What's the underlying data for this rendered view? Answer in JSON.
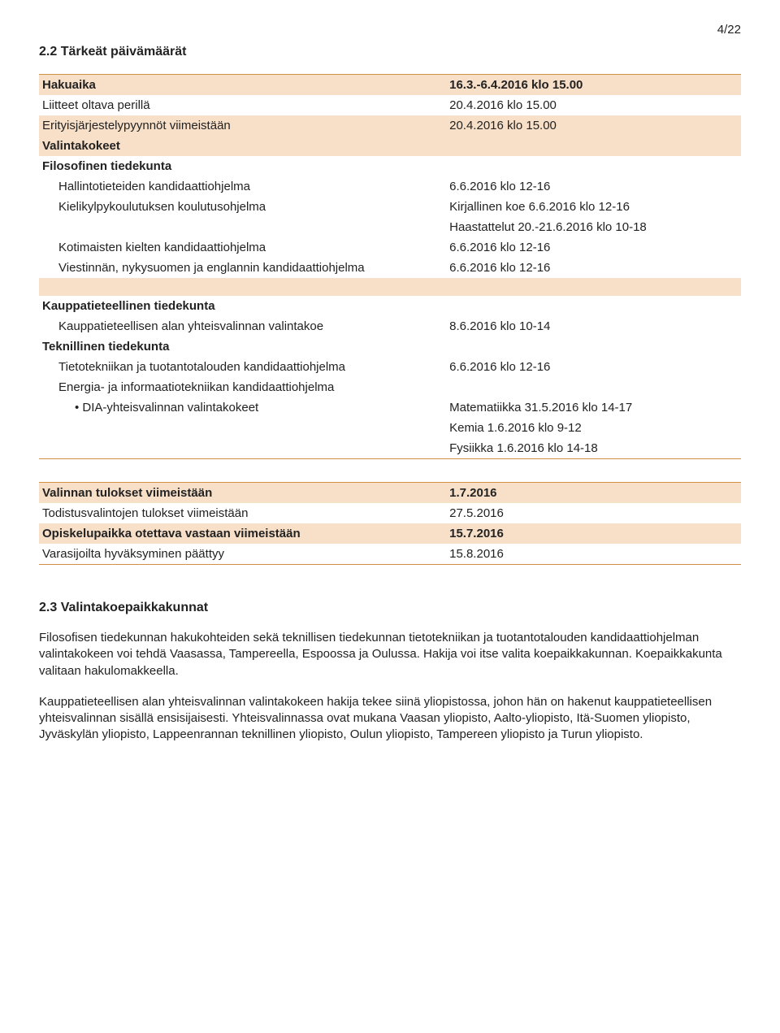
{
  "pageNumber": "4/22",
  "section22Title": "2.2 Tärkeät päivämäärät",
  "table1": {
    "rows": [
      {
        "shaded": true,
        "topRule": true,
        "bold": true,
        "indent": 0,
        "bullet": false,
        "left": "Hakuaika",
        "right": "16.3.-6.4.2016 klo 15.00"
      },
      {
        "shaded": false,
        "topRule": false,
        "bold": false,
        "indent": 0,
        "bullet": false,
        "left": "Liitteet oltava perillä",
        "right": "20.4.2016 klo 15.00"
      },
      {
        "shaded": true,
        "topRule": false,
        "bold": false,
        "indent": 0,
        "bullet": false,
        "left": "Erityisjärjestelypyynnöt viimeistään",
        "right": "20.4.2016 klo 15.00"
      },
      {
        "shaded": true,
        "topRule": false,
        "bold": true,
        "indent": 0,
        "bullet": false,
        "left": "Valintakokeet",
        "right": ""
      },
      {
        "shaded": false,
        "topRule": false,
        "bold": true,
        "indent": 0,
        "bullet": false,
        "left": "Filosofinen tiedekunta",
        "right": ""
      },
      {
        "shaded": false,
        "topRule": false,
        "bold": false,
        "indent": 1,
        "bullet": false,
        "left": "Hallintotieteiden kandidaattiohjelma",
        "right": "6.6.2016 klo 12-16"
      },
      {
        "shaded": false,
        "topRule": false,
        "bold": false,
        "indent": 1,
        "bullet": false,
        "left": "Kielikylpykoulutuksen koulutusohjelma",
        "right": "Kirjallinen koe 6.6.2016 klo 12-16"
      },
      {
        "shaded": false,
        "topRule": false,
        "bold": false,
        "indent": 1,
        "bullet": false,
        "left": "",
        "right": "Haastattelut 20.-21.6.2016 klo 10-18"
      },
      {
        "shaded": false,
        "topRule": false,
        "bold": false,
        "indent": 1,
        "bullet": false,
        "left": "Kotimaisten kielten kandidaattiohjelma",
        "right": "6.6.2016 klo 12-16"
      },
      {
        "shaded": false,
        "topRule": false,
        "bold": false,
        "indent": 1,
        "bullet": false,
        "left": "Viestinnän, nykysuomen ja englannin kandidaattiohjelma",
        "right": "6.6.2016 klo 12-16"
      },
      {
        "shaded": true,
        "topRule": false,
        "bold": false,
        "indent": 0,
        "bullet": false,
        "gap": true,
        "left": "",
        "right": ""
      },
      {
        "shaded": false,
        "topRule": false,
        "bold": true,
        "indent": 0,
        "bullet": false,
        "left": "Kauppatieteellinen tiedekunta",
        "right": ""
      },
      {
        "shaded": false,
        "topRule": false,
        "bold": false,
        "indent": 1,
        "bullet": false,
        "left": "Kauppatieteellisen alan yhteisvalinnan valintakoe",
        "right": "8.6.2016 klo 10-14"
      },
      {
        "shaded": false,
        "topRule": false,
        "bold": true,
        "indent": 0,
        "bullet": false,
        "left": "Teknillinen tiedekunta",
        "right": ""
      },
      {
        "shaded": false,
        "topRule": false,
        "bold": false,
        "indent": 1,
        "bullet": false,
        "left": "Tietotekniikan ja tuotantotalouden kandidaattiohjelma",
        "right": "6.6.2016 klo 12-16"
      },
      {
        "shaded": false,
        "topRule": false,
        "bold": false,
        "indent": 1,
        "bullet": false,
        "left": "Energia- ja informaatiotekniikan kandidaattiohjelma",
        "right": ""
      },
      {
        "shaded": false,
        "topRule": false,
        "bold": false,
        "indent": 2,
        "bullet": true,
        "left": "DIA-yhteisvalinnan valintakokeet",
        "right": "Matematiikka 31.5.2016 klo 14-17"
      },
      {
        "shaded": false,
        "topRule": false,
        "bold": false,
        "indent": 2,
        "bullet": false,
        "left": "",
        "right": "Kemia 1.6.2016 klo 9-12"
      },
      {
        "shaded": false,
        "topRule": false,
        "bold": false,
        "indent": 2,
        "bullet": false,
        "left": "",
        "right": "Fysiikka 1.6.2016 klo 14-18",
        "bottomRule": true
      }
    ]
  },
  "table2": {
    "rows": [
      {
        "shaded": true,
        "topRule": true,
        "bold": true,
        "left": "Valinnan tulokset viimeistään",
        "right": "1.7.2016"
      },
      {
        "shaded": false,
        "topRule": false,
        "bold": false,
        "left": "Todistusvalintojen tulokset viimeistään",
        "right": "27.5.2016"
      },
      {
        "shaded": true,
        "topRule": false,
        "bold": true,
        "left": "Opiskelupaikka otettava vastaan viimeistään",
        "right": "15.7.2016"
      },
      {
        "shaded": false,
        "topRule": false,
        "bold": false,
        "left": "Varasijoilta hyväksyminen päättyy",
        "right": "15.8.2016",
        "bottomRule": true
      }
    ]
  },
  "section23Title": "2.3 Valintakoepaikkakunnat",
  "para1": "Filosofisen tiedekunnan hakukohteiden sekä teknillisen tiedekunnan tietotekniikan ja tuotantotalouden kandidaattiohjelman valintakokeen voi tehdä Vaasassa, Tampereella, Espoossa ja Oulussa. Hakija voi itse valita koepaikkakunnan. Koepaikkakunta valitaan hakulomakkeella.",
  "para2": "Kauppatieteellisen alan yhteisvalinnan valintakokeen hakija tekee siinä yliopistossa, johon hän on hakenut kauppatieteellisen yhteisvalinnan sisällä ensisijaisesti. Yhteisvalinnassa ovat mukana Vaasan yliopisto, Aalto-yliopisto, Itä-Suomen yliopisto, Jyväskylän yliopisto, Lappeenrannan teknillinen yliopisto, Oulun yliopisto, Tampereen yliopisto ja Turun yliopisto."
}
